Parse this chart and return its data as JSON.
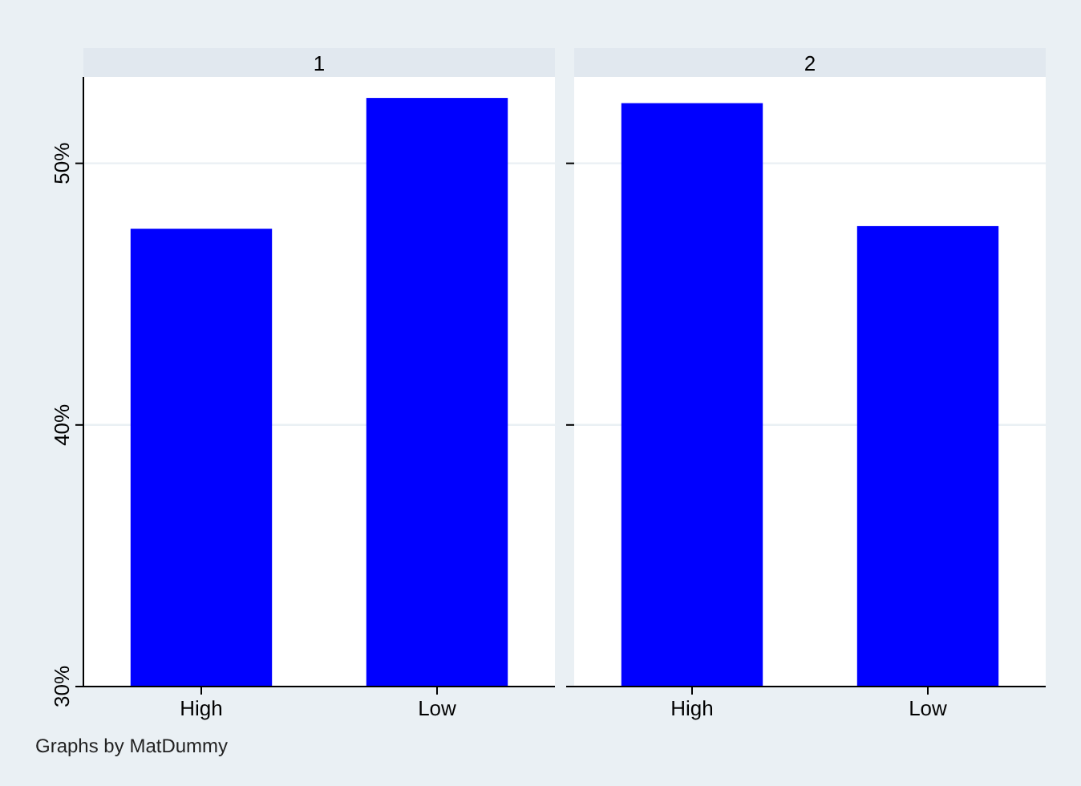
{
  "chart_data": [
    {
      "type": "bar",
      "title": "1",
      "categories": [
        "High",
        "Low"
      ],
      "values": [
        47.5,
        52.5
      ],
      "color": "#0000ff",
      "ylim": [
        30,
        53.3
      ],
      "yticks": [
        {
          "value": 30,
          "label": "30%"
        },
        {
          "value": 40,
          "label": "40%"
        },
        {
          "value": 50,
          "label": "50%"
        }
      ],
      "grid": "y",
      "annotations": [
        "Graphs by MatDummy"
      ]
    },
    {
      "type": "bar",
      "title": "2",
      "categories": [
        "High",
        "Low"
      ],
      "values": [
        52.3,
        47.6
      ],
      "color": "#0000ff",
      "ylim": [
        30,
        53.3
      ],
      "yticks": [
        30,
        40,
        50
      ],
      "grid": "y",
      "tick_labels": "x"
    }
  ]
}
